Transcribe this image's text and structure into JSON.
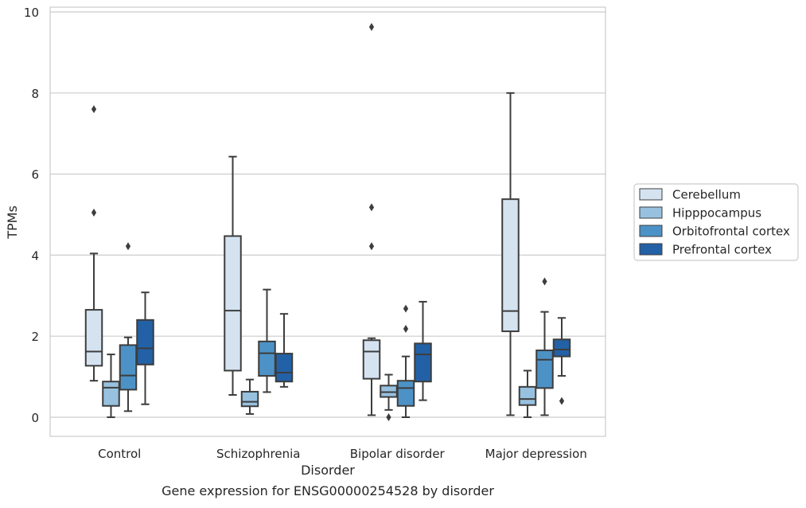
{
  "chart_data": {
    "type": "box",
    "title": "Gene expression for ENSG00000254528 by disorder",
    "xlabel": "Disorder",
    "ylabel": "TPMs",
    "ylim": [
      -0.45,
      10.15
    ],
    "yticks": [
      "0",
      "2",
      "4",
      "6",
      "8",
      "10"
    ],
    "ytick_values": [
      0,
      2,
      4,
      6,
      8,
      10
    ],
    "grid": true,
    "legend_position": "right",
    "categories": [
      "Control",
      "Schizophrenia",
      "Bipolar disorder",
      "Major depression"
    ],
    "series": [
      {
        "name": "Cerebellum",
        "color": "#d5e3f1",
        "boxes": [
          {
            "whisker_low": 0.9,
            "q1": 1.27,
            "median": 1.62,
            "q3": 2.65,
            "whisker_high": 4.04,
            "outliers": [
              5.05,
              7.6
            ]
          },
          {
            "whisker_low": 0.55,
            "q1": 1.15,
            "median": 2.63,
            "q3": 4.47,
            "whisker_high": 6.43,
            "outliers": []
          },
          {
            "whisker_low": 0.05,
            "q1": 0.95,
            "median": 1.62,
            "q3": 1.9,
            "whisker_high": 1.95,
            "outliers": [
              4.22,
              5.18,
              9.63
            ]
          },
          {
            "whisker_low": 0.05,
            "q1": 2.12,
            "median": 2.62,
            "q3": 5.38,
            "whisker_high": 8.0,
            "outliers": []
          }
        ]
      },
      {
        "name": "Hipppocampus",
        "color": "#97c1df",
        "boxes": [
          {
            "whisker_low": 0.0,
            "q1": 0.28,
            "median": 0.73,
            "q3": 0.88,
            "whisker_high": 1.55,
            "outliers": []
          },
          {
            "whisker_low": 0.08,
            "q1": 0.27,
            "median": 0.38,
            "q3": 0.63,
            "whisker_high": 0.93,
            "outliers": []
          },
          {
            "whisker_low": 0.18,
            "q1": 0.5,
            "median": 0.62,
            "q3": 0.78,
            "whisker_high": 1.05,
            "outliers": [
              0.0
            ]
          },
          {
            "whisker_low": 0.0,
            "q1": 0.3,
            "median": 0.45,
            "q3": 0.75,
            "whisker_high": 1.15,
            "outliers": []
          }
        ]
      },
      {
        "name": "Orbitofrontal cortex",
        "color": "#4d92c6",
        "boxes": [
          {
            "whisker_low": 0.15,
            "q1": 0.68,
            "median": 1.03,
            "q3": 1.78,
            "whisker_high": 1.97,
            "outliers": [
              4.22
            ]
          },
          {
            "whisker_low": 0.62,
            "q1": 1.02,
            "median": 1.58,
            "q3": 1.87,
            "whisker_high": 3.15,
            "outliers": []
          },
          {
            "whisker_low": 0.0,
            "q1": 0.28,
            "median": 0.72,
            "q3": 0.9,
            "whisker_high": 1.5,
            "outliers": [
              2.18,
              2.68
            ]
          },
          {
            "whisker_low": 0.05,
            "q1": 0.72,
            "median": 1.42,
            "q3": 1.65,
            "whisker_high": 2.6,
            "outliers": [
              3.35
            ]
          }
        ]
      },
      {
        "name": "Prefrontal cortex",
        "color": "#2261a6",
        "boxes": [
          {
            "whisker_low": 0.32,
            "q1": 1.3,
            "median": 1.7,
            "q3": 2.4,
            "whisker_high": 3.08,
            "outliers": []
          },
          {
            "whisker_low": 0.75,
            "q1": 0.88,
            "median": 1.1,
            "q3": 1.57,
            "whisker_high": 2.55,
            "outliers": []
          },
          {
            "whisker_low": 0.42,
            "q1": 0.88,
            "median": 1.55,
            "q3": 1.82,
            "whisker_high": 2.85,
            "outliers": []
          },
          {
            "whisker_low": 1.02,
            "q1": 1.5,
            "median": 1.67,
            "q3": 1.92,
            "whisker_high": 2.45,
            "outliers": [
              0.4
            ]
          }
        ]
      }
    ]
  }
}
